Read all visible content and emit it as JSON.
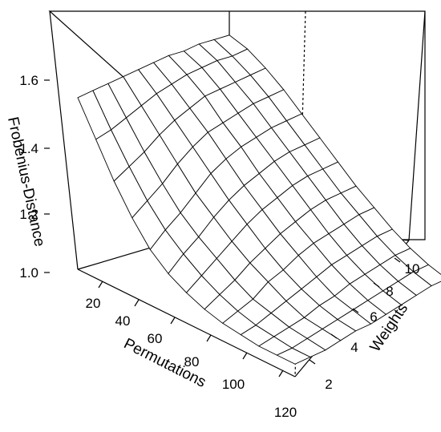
{
  "chart_data": {
    "type": "surface-3d",
    "title": "",
    "zlabel": "Frobenius-Distance",
    "xlabel": "Permutations",
    "ylabel": "Weights",
    "z_ticks": [
      "1.0",
      "1.2",
      "1.4",
      "1.6"
    ],
    "x_ticks": [
      "20",
      "40",
      "60",
      "80",
      "100",
      "120"
    ],
    "y_ticks": [
      "2",
      "4",
      "6",
      "8",
      "10"
    ],
    "zlim": [
      1.0,
      1.75
    ],
    "xlim": [
      0,
      120
    ],
    "ylim": [
      1,
      11
    ],
    "grid": false,
    "surface": {
      "description_rows": "rows indexed by weights 1..11; columns indexed by permutations 0..120 step 10",
      "weights": [
        1,
        2,
        3,
        4,
        5,
        6,
        7,
        8,
        9,
        10,
        11
      ],
      "permutations": [
        0,
        10,
        20,
        30,
        40,
        50,
        60,
        70,
        80,
        90,
        100,
        110,
        120
      ],
      "values": [
        [
          1.68,
          1.55,
          1.42,
          1.31,
          1.22,
          1.16,
          1.12,
          1.09,
          1.07,
          1.06,
          1.05,
          1.05,
          1.05
        ],
        [
          1.69,
          1.57,
          1.46,
          1.36,
          1.28,
          1.22,
          1.17,
          1.13,
          1.1,
          1.08,
          1.07,
          1.06,
          1.06
        ],
        [
          1.7,
          1.6,
          1.5,
          1.41,
          1.33,
          1.27,
          1.22,
          1.17,
          1.13,
          1.11,
          1.09,
          1.08,
          1.07
        ],
        [
          1.71,
          1.63,
          1.55,
          1.47,
          1.39,
          1.33,
          1.27,
          1.22,
          1.18,
          1.14,
          1.11,
          1.1,
          1.09
        ],
        [
          1.72,
          1.66,
          1.59,
          1.52,
          1.45,
          1.38,
          1.32,
          1.26,
          1.21,
          1.17,
          1.14,
          1.12,
          1.11
        ],
        [
          1.73,
          1.68,
          1.62,
          1.56,
          1.49,
          1.42,
          1.36,
          1.3,
          1.25,
          1.2,
          1.16,
          1.14,
          1.12
        ],
        [
          1.74,
          1.7,
          1.65,
          1.58,
          1.52,
          1.45,
          1.39,
          1.33,
          1.28,
          1.23,
          1.19,
          1.16,
          1.14
        ],
        [
          1.74,
          1.71,
          1.66,
          1.6,
          1.54,
          1.48,
          1.42,
          1.36,
          1.3,
          1.25,
          1.21,
          1.18,
          1.16
        ],
        [
          1.75,
          1.72,
          1.67,
          1.62,
          1.56,
          1.5,
          1.44,
          1.38,
          1.32,
          1.27,
          1.23,
          1.2,
          1.18
        ],
        [
          1.75,
          1.72,
          1.68,
          1.63,
          1.57,
          1.51,
          1.45,
          1.39,
          1.34,
          1.29,
          1.25,
          1.22,
          1.2
        ],
        [
          1.75,
          1.73,
          1.69,
          1.64,
          1.58,
          1.52,
          1.46,
          1.4,
          1.35,
          1.3,
          1.26,
          1.23,
          1.21
        ]
      ]
    }
  }
}
